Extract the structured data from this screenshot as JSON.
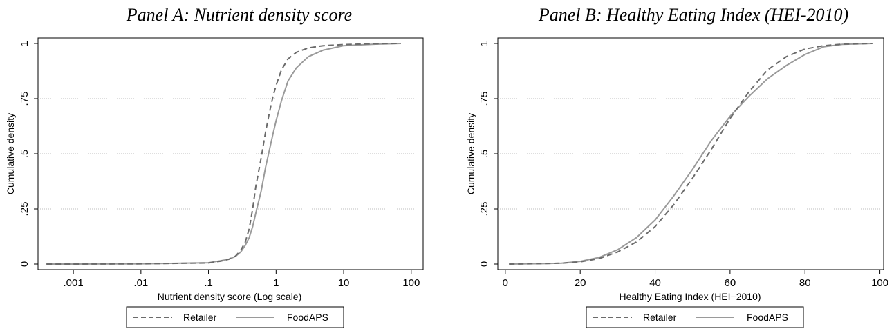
{
  "colors": {
    "retailer": "#6b6b6b",
    "foodaps": "#9a9a9a",
    "grid": "#bdbdbd",
    "axis": "#000000"
  },
  "chart_data": [
    {
      "type": "line",
      "title": "Panel A: Nutrient density score",
      "xlabel": "Nutrient density score (Log scale)",
      "ylabel": "Cumulative density",
      "x_scale": "log",
      "xlim": [
        0.0003,
        150
      ],
      "ylim": [
        0,
        1
      ],
      "x_ticks": [
        0.001,
        0.01,
        0.1,
        1,
        10,
        100
      ],
      "x_tick_labels": [
        ".001",
        ".01",
        ".1",
        "1",
        "10",
        "100"
      ],
      "y_ticks": [
        0,
        0.25,
        0.5,
        0.75,
        1
      ],
      "y_tick_labels": [
        "0",
        ".25",
        ".5",
        ".75",
        "1"
      ],
      "grid": "horizontal at y ticks, dotted",
      "legend": "bottom, outside plot",
      "series": [
        {
          "name": "Retailer",
          "style": "dashed",
          "points": [
            [
              0.0004,
              0
            ],
            [
              0.001,
              0
            ],
            [
              0.01,
              0.001
            ],
            [
              0.1,
              0.005
            ],
            [
              0.15,
              0.013
            ],
            [
              0.2,
              0.022
            ],
            [
              0.25,
              0.036
            ],
            [
              0.3,
              0.063
            ],
            [
              0.35,
              0.1
            ],
            [
              0.4,
              0.16
            ],
            [
              0.45,
              0.25
            ],
            [
              0.5,
              0.35
            ],
            [
              0.6,
              0.48
            ],
            [
              0.7,
              0.6
            ],
            [
              0.8,
              0.69
            ],
            [
              0.9,
              0.76
            ],
            [
              1.0,
              0.81
            ],
            [
              1.2,
              0.88
            ],
            [
              1.5,
              0.93
            ],
            [
              2.0,
              0.96
            ],
            [
              3.0,
              0.98
            ],
            [
              5.0,
              0.99
            ],
            [
              10,
              0.995
            ],
            [
              30,
              0.999
            ],
            [
              70,
              1
            ]
          ]
        },
        {
          "name": "FoodAPS",
          "style": "solid",
          "points": [
            [
              0.0004,
              0
            ],
            [
              0.001,
              0
            ],
            [
              0.01,
              0.001
            ],
            [
              0.1,
              0.006
            ],
            [
              0.15,
              0.015
            ],
            [
              0.2,
              0.022
            ],
            [
              0.25,
              0.035
            ],
            [
              0.3,
              0.055
            ],
            [
              0.35,
              0.085
            ],
            [
              0.4,
              0.12
            ],
            [
              0.45,
              0.17
            ],
            [
              0.5,
              0.23
            ],
            [
              0.6,
              0.33
            ],
            [
              0.7,
              0.44
            ],
            [
              0.8,
              0.52
            ],
            [
              0.9,
              0.59
            ],
            [
              1.0,
              0.65
            ],
            [
              1.2,
              0.74
            ],
            [
              1.5,
              0.83
            ],
            [
              2.0,
              0.89
            ],
            [
              3.0,
              0.94
            ],
            [
              5.0,
              0.97
            ],
            [
              10,
              0.99
            ],
            [
              30,
              0.997
            ],
            [
              70,
              1
            ]
          ]
        }
      ]
    },
    {
      "type": "line",
      "title": "Panel B: Healthy Eating Index (HEI-2010)",
      "xlabel": "Healthy Eating Index (HEI−2010)",
      "ylabel": "Cumulative density",
      "x_scale": "linear",
      "xlim": [
        -2,
        101
      ],
      "ylim": [
        0,
        1
      ],
      "x_ticks": [
        0,
        20,
        40,
        60,
        80,
        100
      ],
      "x_tick_labels": [
        "0",
        "20",
        "40",
        "60",
        "80",
        "100"
      ],
      "y_ticks": [
        0,
        0.25,
        0.5,
        0.75,
        1
      ],
      "y_tick_labels": [
        "0",
        ".25",
        ".5",
        ".75",
        "1"
      ],
      "grid": "horizontal at y ticks, dotted",
      "legend": "bottom, outside plot",
      "series": [
        {
          "name": "Retailer",
          "style": "dashed",
          "points": [
            [
              1,
              0
            ],
            [
              10,
              0.002
            ],
            [
              15,
              0.004
            ],
            [
              20,
              0.01
            ],
            [
              25,
              0.025
            ],
            [
              30,
              0.055
            ],
            [
              35,
              0.1
            ],
            [
              40,
              0.17
            ],
            [
              45,
              0.27
            ],
            [
              50,
              0.39
            ],
            [
              55,
              0.52
            ],
            [
              60,
              0.66
            ],
            [
              65,
              0.78
            ],
            [
              70,
              0.88
            ],
            [
              75,
              0.94
            ],
            [
              80,
              0.975
            ],
            [
              85,
              0.99
            ],
            [
              90,
              0.997
            ],
            [
              98,
              1
            ]
          ]
        },
        {
          "name": "FoodAPS",
          "style": "solid",
          "points": [
            [
              1,
              0
            ],
            [
              10,
              0.002
            ],
            [
              15,
              0.004
            ],
            [
              20,
              0.012
            ],
            [
              25,
              0.03
            ],
            [
              30,
              0.065
            ],
            [
              35,
              0.12
            ],
            [
              40,
              0.2
            ],
            [
              45,
              0.31
            ],
            [
              50,
              0.43
            ],
            [
              55,
              0.56
            ],
            [
              60,
              0.67
            ],
            [
              65,
              0.76
            ],
            [
              70,
              0.84
            ],
            [
              75,
              0.9
            ],
            [
              80,
              0.95
            ],
            [
              85,
              0.985
            ],
            [
              90,
              0.996
            ],
            [
              98,
              1
            ]
          ]
        }
      ]
    }
  ]
}
